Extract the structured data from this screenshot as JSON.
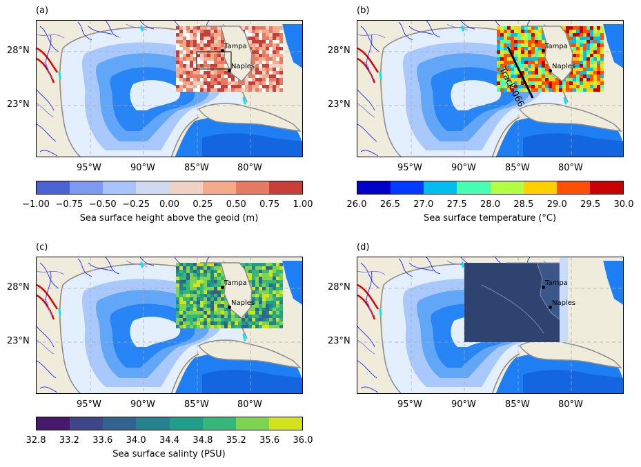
{
  "panels": [
    {
      "label": "(a)",
      "overlay": "ssh"
    },
    {
      "label": "(b)",
      "overlay": "sst",
      "track_label": "Track 066"
    },
    {
      "label": "(c)",
      "overlay": "sss"
    },
    {
      "label": "(d)",
      "overlay": "satellite"
    }
  ],
  "lat_ticks": [
    "28°N",
    "23°N"
  ],
  "lon_ticks": [
    "95°W",
    "90°W",
    "85°W",
    "80°W"
  ],
  "cities": {
    "tampa": "Tampa",
    "naples": "Naples"
  },
  "colorbars": [
    {
      "label": "Sea surface height above the geoid (m)",
      "ticks": [
        "−1.00",
        "−0.75",
        "−0.50",
        "−0.25",
        "0.00",
        "0.25",
        "0.50",
        "0.75",
        "1.00"
      ],
      "colors": [
        "#4a63d3",
        "#7c9af2",
        "#a9c4fb",
        "#cfd9ef",
        "#efd2c4",
        "#f5aa8a",
        "#e77a62",
        "#c83f3a"
      ]
    },
    {
      "label": "Sea surface temperature (°C)",
      "ticks": [
        "26.0",
        "26.5",
        "27.0",
        "27.5",
        "28.0",
        "28.5",
        "29.0",
        "29.5",
        "30.0"
      ],
      "colors": [
        "#0000c8",
        "#003cff",
        "#00bff0",
        "#45ffb2",
        "#b2ff45",
        "#ffcf00",
        "#ff4f00",
        "#c80000"
      ]
    },
    {
      "label": "Sea surface salinty (PSU)",
      "ticks": [
        "32.8",
        "33.2",
        "33.6",
        "34.0",
        "34.4",
        "34.8",
        "35.2",
        "35.6",
        "36.0"
      ],
      "colors": [
        "#46196d",
        "#3f4688",
        "#30638d",
        "#25818e",
        "#1f9f89",
        "#35b779",
        "#7ed34f",
        "#d2e21b"
      ]
    }
  ],
  "colors": {
    "land": "#f0ecdc",
    "deep": "#1e7ff5",
    "shelf": "#e4effd",
    "river": "#0000ff",
    "coast": "#8c8c8c"
  }
}
